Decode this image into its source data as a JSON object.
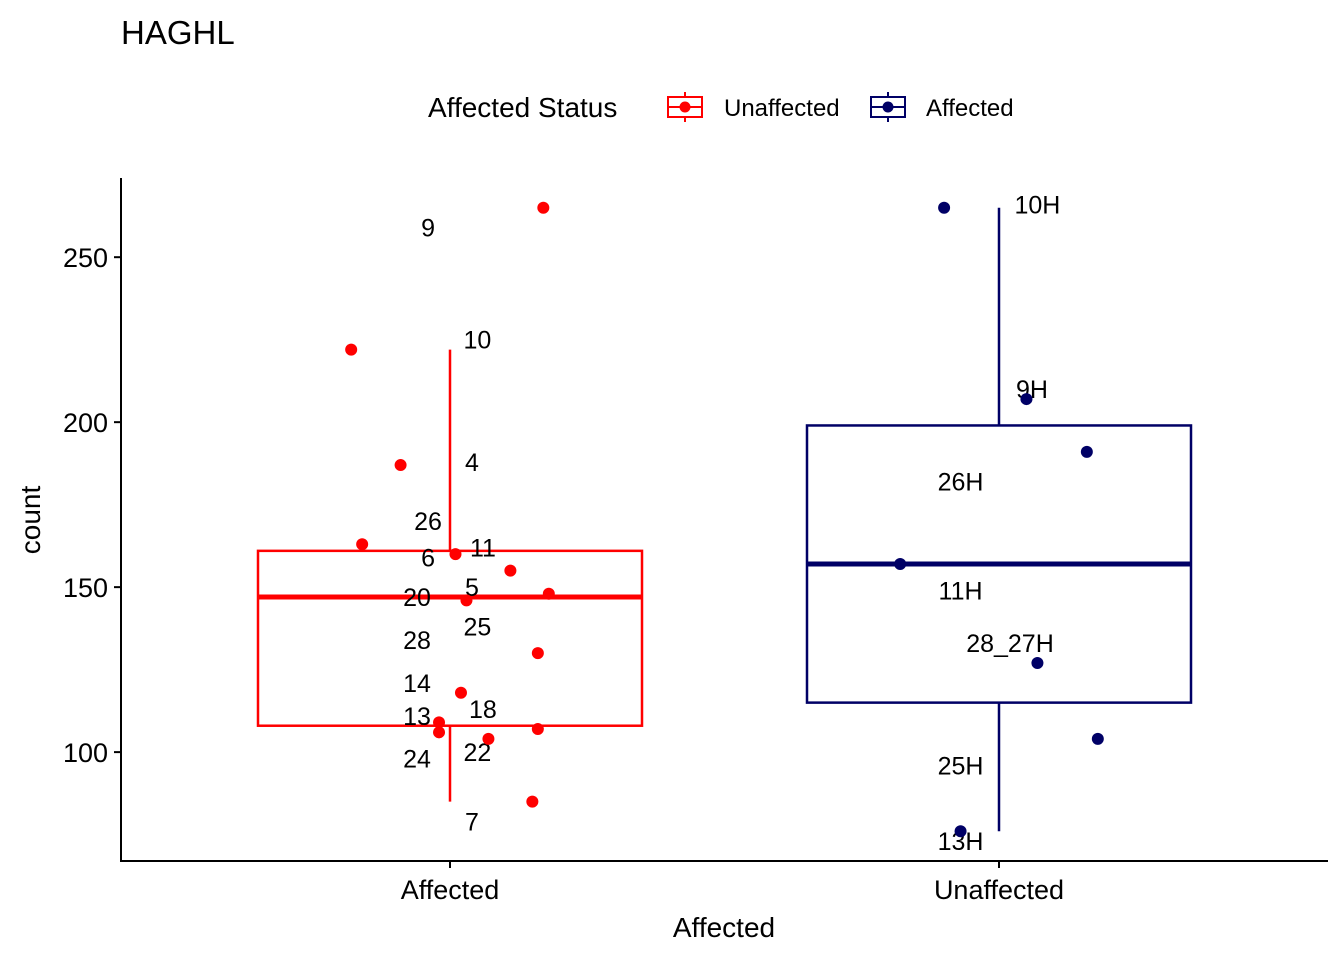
{
  "chart_data": {
    "type": "box",
    "title": "HAGHL",
    "xlabel": "Affected",
    "ylabel": "count",
    "ylim": [
      67,
      274
    ],
    "yticks": [
      100,
      150,
      200,
      250
    ],
    "categories": [
      "Affected",
      "Unaffected"
    ],
    "grid": false,
    "legend": {
      "title": "Affected Status",
      "placement": "top",
      "entries": [
        {
          "label": "Unaffected",
          "color": "#ff0000"
        },
        {
          "label": "Affected",
          "color": "#000066"
        }
      ]
    },
    "boxes": [
      {
        "category": "Affected",
        "color": "#ff0000",
        "whisker_low": 85,
        "q1": 108,
        "median": 147,
        "q3": 161,
        "whisker_high": 222
      },
      {
        "category": "Unaffected",
        "color": "#000066",
        "whisker_low": 76,
        "q1": 115,
        "median": 157,
        "q3": 199,
        "whisker_high": 265
      }
    ],
    "points": [
      {
        "category": "Affected",
        "jitter": 0.17,
        "y": 265
      },
      {
        "category": "Affected",
        "jitter": -0.18,
        "y": 222
      },
      {
        "category": "Affected",
        "jitter": -0.09,
        "y": 187
      },
      {
        "category": "Affected",
        "jitter": -0.16,
        "y": 163
      },
      {
        "category": "Affected",
        "jitter": 0.01,
        "y": 160
      },
      {
        "category": "Affected",
        "jitter": 0.11,
        "y": 155
      },
      {
        "category": "Affected",
        "jitter": 0.18,
        "y": 148
      },
      {
        "category": "Affected",
        "jitter": 0.03,
        "y": 146
      },
      {
        "category": "Affected",
        "jitter": 0.16,
        "y": 130
      },
      {
        "category": "Affected",
        "jitter": 0.02,
        "y": 118
      },
      {
        "category": "Affected",
        "jitter": -0.02,
        "y": 109
      },
      {
        "category": "Affected",
        "jitter": 0.16,
        "y": 107
      },
      {
        "category": "Affected",
        "jitter": -0.02,
        "y": 106
      },
      {
        "category": "Affected",
        "jitter": 0.07,
        "y": 104
      },
      {
        "category": "Affected",
        "jitter": 0.15,
        "y": 85
      },
      {
        "category": "Unaffected",
        "jitter": -0.1,
        "y": 265
      },
      {
        "category": "Unaffected",
        "jitter": 0.05,
        "y": 207
      },
      {
        "category": "Unaffected",
        "jitter": 0.16,
        "y": 191
      },
      {
        "category": "Unaffected",
        "jitter": -0.18,
        "y": 157
      },
      {
        "category": "Unaffected",
        "jitter": 0.07,
        "y": 127
      },
      {
        "category": "Unaffected",
        "jitter": 0.18,
        "y": 104
      },
      {
        "category": "Unaffected",
        "jitter": -0.07,
        "y": 76
      }
    ],
    "labels": [
      {
        "category": "Affected",
        "text": "9",
        "jitter": -0.04,
        "y": 259
      },
      {
        "category": "Affected",
        "text": "10",
        "jitter": 0.05,
        "y": 225
      },
      {
        "category": "Affected",
        "text": "4",
        "jitter": 0.04,
        "y": 188
      },
      {
        "category": "Affected",
        "text": "26",
        "jitter": -0.04,
        "y": 170
      },
      {
        "category": "Affected",
        "text": "6",
        "jitter": -0.04,
        "y": 159
      },
      {
        "category": "Affected",
        "text": "11",
        "jitter": 0.06,
        "y": 162
      },
      {
        "category": "Affected",
        "text": "5",
        "jitter": 0.04,
        "y": 150
      },
      {
        "category": "Affected",
        "text": "20",
        "jitter": -0.06,
        "y": 147
      },
      {
        "category": "Affected",
        "text": "25",
        "jitter": 0.05,
        "y": 138
      },
      {
        "category": "Affected",
        "text": "28",
        "jitter": -0.06,
        "y": 134
      },
      {
        "category": "Affected",
        "text": "14",
        "jitter": -0.06,
        "y": 121
      },
      {
        "category": "Affected",
        "text": "18",
        "jitter": 0.06,
        "y": 113
      },
      {
        "category": "Affected",
        "text": "13",
        "jitter": -0.06,
        "y": 111
      },
      {
        "category": "Affected",
        "text": "22",
        "jitter": 0.05,
        "y": 100
      },
      {
        "category": "Affected",
        "text": "24",
        "jitter": -0.06,
        "y": 98
      },
      {
        "category": "Affected",
        "text": "7",
        "jitter": 0.04,
        "y": 79
      },
      {
        "category": "Unaffected",
        "text": "10H",
        "jitter": 0.07,
        "y": 266
      },
      {
        "category": "Unaffected",
        "text": "9H",
        "jitter": 0.06,
        "y": 210
      },
      {
        "category": "Unaffected",
        "text": "26H",
        "jitter": -0.07,
        "y": 182
      },
      {
        "category": "Unaffected",
        "text": "11H",
        "jitter": -0.07,
        "y": 149
      },
      {
        "category": "Unaffected",
        "text": "28_27H",
        "jitter": 0.02,
        "y": 133
      },
      {
        "category": "Unaffected",
        "text": "25H",
        "jitter": -0.07,
        "y": 96
      },
      {
        "category": "Unaffected",
        "text": "13H",
        "jitter": -0.07,
        "y": 73
      }
    ]
  }
}
